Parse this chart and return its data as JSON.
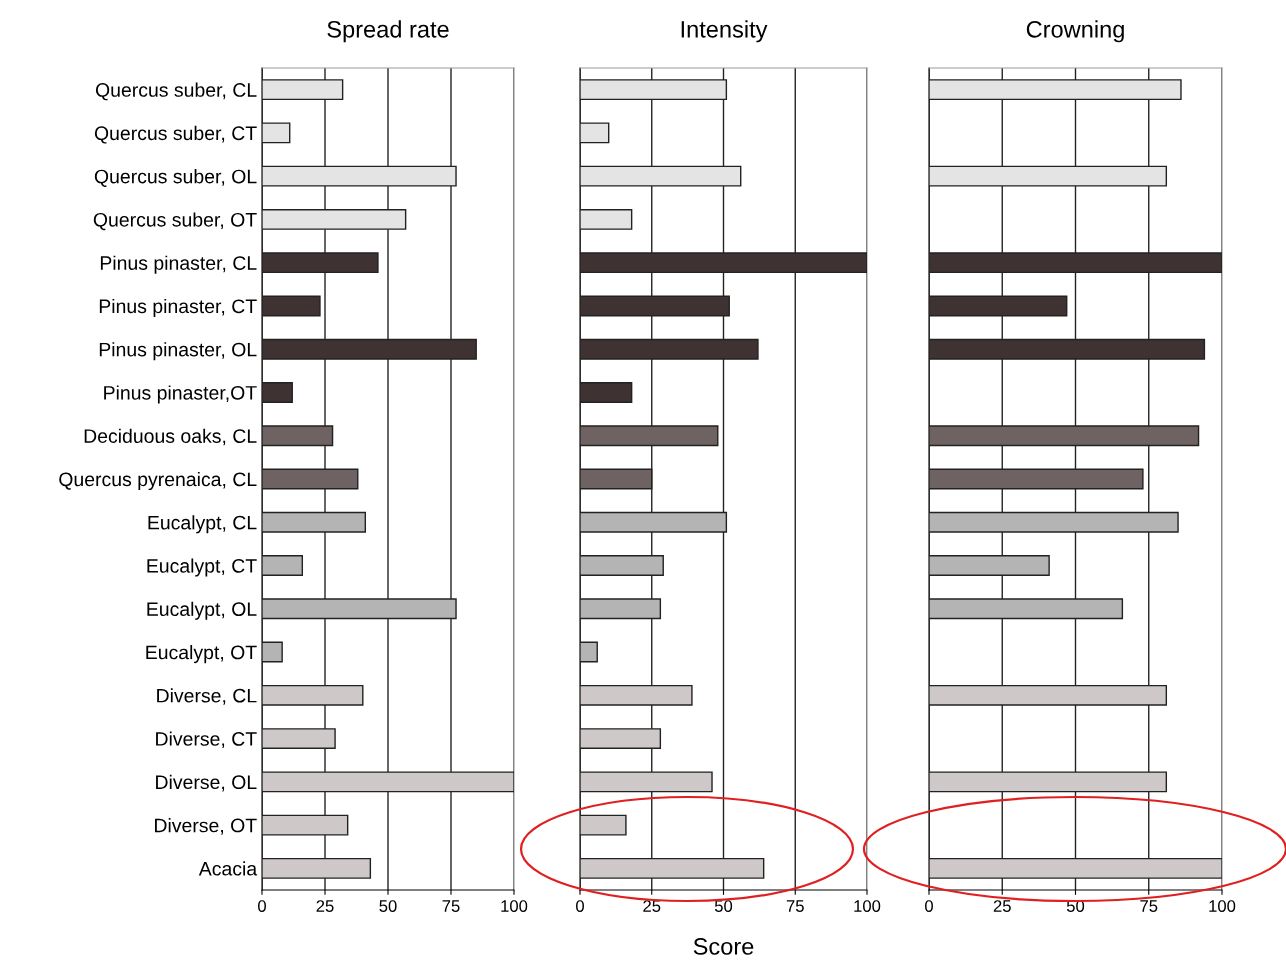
{
  "chart_data": [
    {
      "type": "bar",
      "orientation": "horizontal",
      "title": "Spread rate",
      "categories": [
        "Quercus suber, CL",
        "Quercus suber, CT",
        "Quercus suber, OL",
        "Quercus suber, OT",
        "Pinus pinaster, CL",
        "Pinus pinaster, CT",
        "Pinus pinaster, OL",
        "Pinus pinaster,OT",
        "Deciduous oaks, CL",
        "Quercus pyrenaica, CL",
        "Eucalypt, CL",
        "Eucalypt, CT",
        "Eucalypt, OL",
        "Eucalypt, OT",
        "Diverse, CL",
        "Diverse, CT",
        "Diverse, OL",
        "Diverse, OT",
        "Acacia"
      ],
      "values": [
        32,
        11,
        77,
        57,
        46,
        23,
        85,
        12,
        28,
        38,
        41,
        16,
        77,
        8,
        40,
        29,
        100,
        34,
        43
      ],
      "colors": [
        "#e4e4e4",
        "#e4e4e4",
        "#e4e4e4",
        "#e4e4e4",
        "#3e3232",
        "#3e3232",
        "#3e3232",
        "#3e3232",
        "#6e6262",
        "#6e6262",
        "#b4b4b4",
        "#b4b4b4",
        "#b4b4b4",
        "#b4b4b4",
        "#cfc8c8",
        "#cfc8c8",
        "#cfc8c8",
        "#cfc8c8",
        "#cfc8c8"
      ],
      "xlim": [
        0,
        100
      ],
      "xticks": [
        0,
        25,
        50,
        75,
        100
      ],
      "grid": "x"
    },
    {
      "type": "bar",
      "orientation": "horizontal",
      "title": "Intensity",
      "xlabel": "Score",
      "tick_labels": "x",
      "categories": [
        null,
        null,
        null,
        null,
        null,
        null,
        null,
        null,
        null,
        null,
        null,
        null,
        null,
        null,
        null,
        null,
        null,
        null,
        null
      ],
      "values": [
        51,
        10,
        56,
        18,
        100,
        52,
        62,
        18,
        48,
        25,
        51,
        29,
        28,
        6,
        39,
        28,
        46,
        16,
        64
      ],
      "colors": [
        "#e4e4e4",
        "#e4e4e4",
        "#e4e4e4",
        "#e4e4e4",
        "#3e3232",
        "#3e3232",
        "#3e3232",
        "#3e3232",
        "#6e6262",
        "#6e6262",
        "#b4b4b4",
        "#b4b4b4",
        "#b4b4b4",
        "#b4b4b4",
        "#cfc8c8",
        "#cfc8c8",
        "#cfc8c8",
        "#cfc8c8",
        "#cfc8c8"
      ],
      "xlim": [
        0,
        100
      ],
      "xticks": [
        0,
        25,
        50,
        75,
        100
      ],
      "grid": "x"
    },
    {
      "type": "bar",
      "orientation": "horizontal",
      "title": "Crowning",
      "tick_labels": "x",
      "categories": [
        null,
        null,
        null,
        null,
        null,
        null,
        null,
        null,
        null,
        null,
        null,
        null,
        null,
        null,
        null,
        null,
        null,
        null,
        null
      ],
      "values": [
        86,
        null,
        81,
        null,
        100,
        47,
        94,
        null,
        92,
        73,
        85,
        41,
        66,
        null,
        81,
        null,
        81,
        null,
        100
      ],
      "colors": [
        "#e4e4e4",
        "#e4e4e4",
        "#e4e4e4",
        "#e4e4e4",
        "#3e3232",
        "#3e3232",
        "#3e3232",
        "#3e3232",
        "#6e6262",
        "#6e6262",
        "#b4b4b4",
        "#b4b4b4",
        "#b4b4b4",
        "#b4b4b4",
        "#cfc8c8",
        "#cfc8c8",
        "#cfc8c8",
        "#cfc8c8",
        "#cfc8c8"
      ],
      "xlim": [
        0,
        100
      ],
      "xticks": [
        0,
        25,
        50,
        75,
        100
      ],
      "grid": "x"
    }
  ]
}
